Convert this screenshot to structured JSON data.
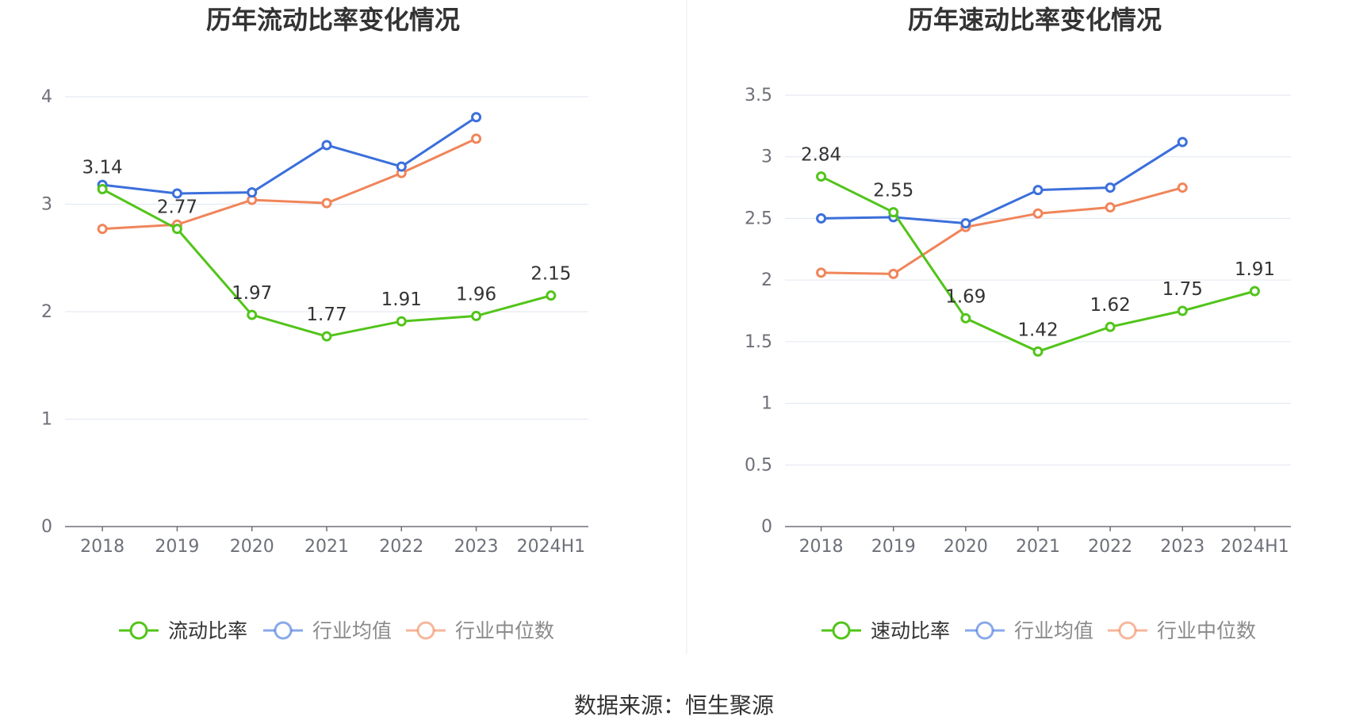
{
  "source_label": "数据来源：恒生聚源",
  "colors": {
    "primary": "#52c41a",
    "average": "#3b6fdb",
    "median": "#f0855a"
  },
  "chart_data": [
    {
      "type": "line",
      "title": "历年流动比率变化情况",
      "categories": [
        "2018",
        "2019",
        "2020",
        "2021",
        "2022",
        "2023",
        "2024H1"
      ],
      "ylim": [
        0,
        4
      ],
      "yticks": [
        "0",
        "1",
        "2",
        "3",
        "4"
      ],
      "grid": true,
      "legend_position": "bottom",
      "series": [
        {
          "name": "流动比率",
          "values": [
            3.14,
            2.77,
            1.97,
            1.77,
            1.91,
            1.96,
            2.15
          ],
          "labels": [
            "3.14",
            "2.77",
            "1.97",
            "1.77",
            "1.91",
            "1.96",
            "2.15"
          ]
        },
        {
          "name": "行业均值",
          "values": [
            3.18,
            3.1,
            3.11,
            3.55,
            3.35,
            3.81,
            null
          ]
        },
        {
          "name": "行业中位数",
          "values": [
            2.77,
            2.81,
            3.04,
            3.01,
            3.29,
            3.61,
            null
          ]
        }
      ]
    },
    {
      "type": "line",
      "title": "历年速动比率变化情况",
      "categories": [
        "2018",
        "2019",
        "2020",
        "2021",
        "2022",
        "2023",
        "2024H1"
      ],
      "ylim": [
        0,
        3.5
      ],
      "yticks": [
        "0",
        "0.5",
        "1",
        "1.5",
        "2",
        "2.5",
        "3",
        "3.5"
      ],
      "grid": true,
      "legend_position": "bottom",
      "series": [
        {
          "name": "速动比率",
          "values": [
            2.84,
            2.55,
            1.69,
            1.42,
            1.62,
            1.75,
            1.91
          ],
          "labels": [
            "2.84",
            "2.55",
            "1.69",
            "1.42",
            "1.62",
            "1.75",
            "1.91"
          ]
        },
        {
          "name": "行业均值",
          "values": [
            2.5,
            2.51,
            2.46,
            2.73,
            2.75,
            3.12,
            null
          ]
        },
        {
          "name": "行业中位数",
          "values": [
            2.06,
            2.05,
            2.43,
            2.54,
            2.59,
            2.75,
            null
          ]
        }
      ]
    }
  ]
}
